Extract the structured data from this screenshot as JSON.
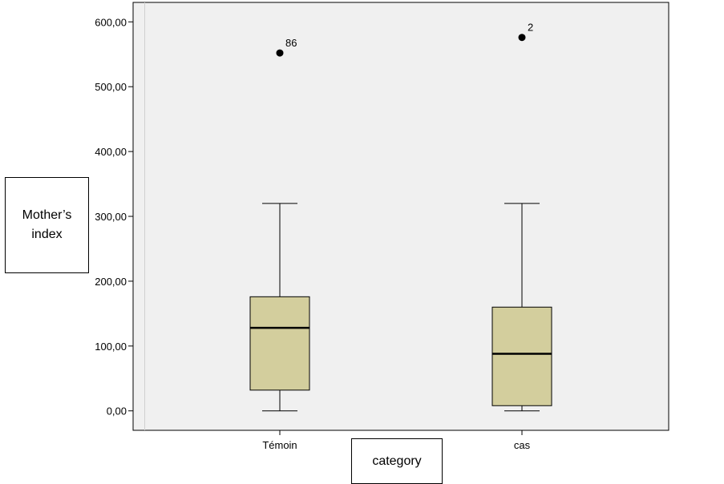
{
  "chart_data": {
    "type": "boxplot",
    "title": "",
    "xlabel": "category",
    "ylabel": "Mother’s index",
    "ylim": [
      -30,
      630
    ],
    "y_ticks": [
      0,
      100,
      200,
      300,
      400,
      500,
      600
    ],
    "y_tick_labels": [
      "0,00",
      "100,00",
      "200,00",
      "300,00",
      "400,00",
      "500,00",
      "600,00"
    ],
    "grid": false,
    "categories": [
      "Témoin",
      "cas"
    ],
    "boxes": [
      {
        "category": "Témoin",
        "whisker_low": 0,
        "q1": 32,
        "median": 128,
        "q3": 176,
        "whisker_high": 320,
        "outliers": [
          {
            "value": 552,
            "label": "86"
          }
        ]
      },
      {
        "category": "cas",
        "whisker_low": 0,
        "q1": 8,
        "median": 88,
        "q3": 160,
        "whisker_high": 320,
        "outliers": [
          {
            "value": 576,
            "label": "2"
          }
        ]
      }
    ],
    "colors": {
      "plot_background": "#f0f0f0",
      "box_fill": "#d3ce9d",
      "line": "#000000"
    }
  }
}
